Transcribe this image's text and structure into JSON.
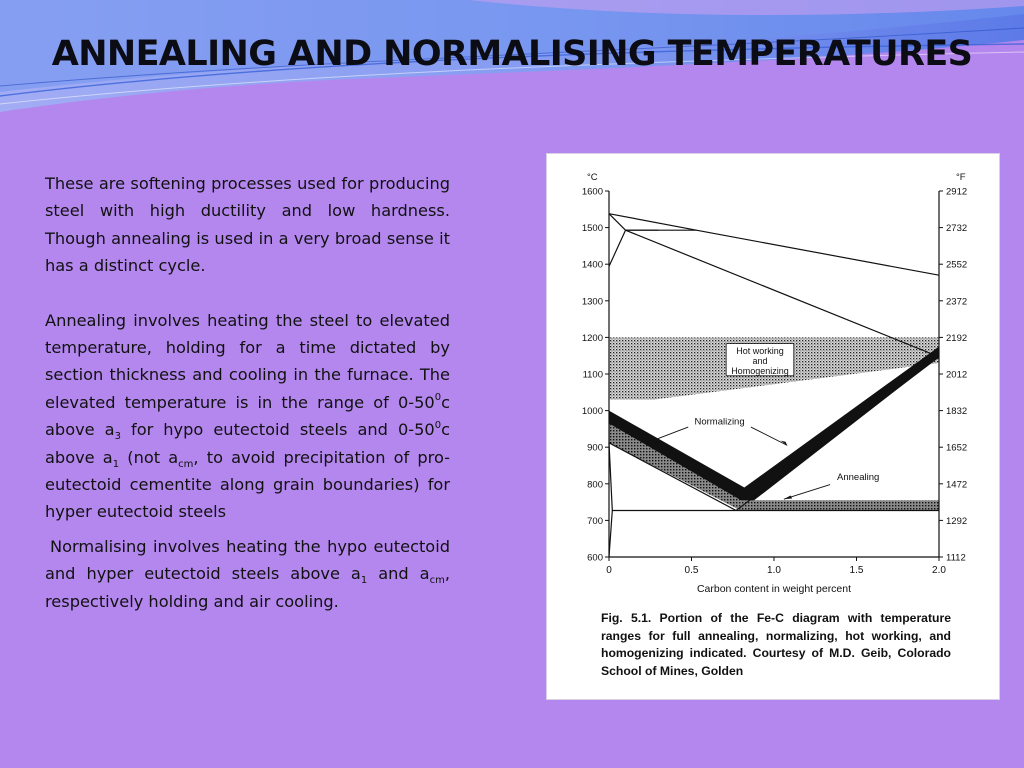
{
  "slide": {
    "title": "ANNEALING AND NORMALISING TEMPERATURES",
    "colors": {
      "background": "#b487ee",
      "wave_light": "#9fb3f5",
      "wave_mid": "#6f93ee",
      "wave_dark": "#3a62d8",
      "wave_pink": "#d0a0f0"
    }
  },
  "paragraphs": {
    "p1": "These are softening processes used for producing steel with high ductility and low hardness. Though annealing is used in a very broad sense it has a distinct cycle.",
    "p2": {
      "t1": "Annealing involves heating the steel to elevated temperature, holding for a time dictated by section thickness and cooling in the furnace. The elevated temperature is in the range of 0-50",
      "sup1": "0",
      "t2": "c above a",
      "sub1": "3",
      "t3": " for hypo eutectoid steels and 0-50",
      "sup2": "0",
      "t4": "c above a",
      "sub2": "1",
      "t5": " (not a",
      "sub3": "cm",
      "t6": ", to avoid precipitation of pro-eutectoid cementite along grain boundaries) for hyper eutectoid steels"
    },
    "p3": {
      "t1": "Normalising involves heating the hypo eutectoid and hyper eutectoid steels above a",
      "sub1": "1",
      "t2": " and a",
      "sub2": "cm",
      "t3": ", respectively holding and air cooling."
    }
  },
  "figure": {
    "caption": "Fig. 5.1. Portion of the Fe-C diagram with temperature ranges for full annealing, normalizing, hot working, and homogenizing indicated. Courtesy of M.D. Geib, Colorado School of Mines, Golden",
    "chart_data": {
      "type": "area",
      "xlabel": "Carbon content in weight percent",
      "y_left_unit": "°C",
      "y_right_unit": "°F",
      "x_ticks": [
        "0",
        "0.5",
        "1.0",
        "1.5",
        "2.0"
      ],
      "x_tick_values": [
        0,
        0.5,
        1.0,
        1.5,
        2.0
      ],
      "y_left_ticks": [
        "1600",
        "1500",
        "1400",
        "1300",
        "1200",
        "1100",
        "1000",
        "900",
        "800",
        "700",
        "600"
      ],
      "y_left_values": [
        1600,
        1500,
        1400,
        1300,
        1200,
        1100,
        1000,
        900,
        800,
        700,
        600
      ],
      "y_right_ticks": [
        "2912",
        "2732",
        "2552",
        "2372",
        "2192",
        "2012",
        "1832",
        "1652",
        "1472",
        "1292",
        "1112"
      ],
      "xlim": [
        0,
        2.0
      ],
      "ylim": [
        600,
        1600
      ],
      "grid": false,
      "labels": {
        "hot_working": [
          "Hot working",
          "and",
          "Homogenizing"
        ],
        "normalizing": "Normalizing",
        "annealing": "Annealing"
      },
      "phase_lines": [
        {
          "name": "liquidus",
          "points": [
            [
              0,
              1538
            ],
            [
              0.53,
              1493
            ],
            [
              2.0,
              1370
            ]
          ]
        },
        {
          "name": "delta-boundary-upper",
          "points": [
            [
              0,
              1538
            ],
            [
              0.1,
              1493
            ],
            [
              0.53,
              1493
            ]
          ]
        },
        {
          "name": "delta-boundary-lower",
          "points": [
            [
              0,
              1394
            ],
            [
              0.1,
              1493
            ]
          ]
        },
        {
          "name": "peritectic-solidus",
          "points": [
            [
              0.1,
              1493
            ],
            [
              0.3,
              1493
            ]
          ]
        },
        {
          "name": "solidus",
          "points": [
            [
              0.1,
              1493
            ],
            [
              2.0,
              1147
            ]
          ]
        },
        {
          "name": "acm",
          "points": [
            [
              0.77,
              727
            ],
            [
              2.0,
              1147
            ]
          ]
        },
        {
          "name": "a3",
          "points": [
            [
              0,
              912
            ],
            [
              0.77,
              727
            ]
          ]
        },
        {
          "name": "eutectoid",
          "points": [
            [
              0.02,
              727
            ],
            [
              2.0,
              727
            ]
          ]
        },
        {
          "name": "alpha-boundary",
          "points": [
            [
              0,
              912
            ],
            [
              0.02,
              727
            ],
            [
              0.0,
              600
            ]
          ]
        }
      ],
      "ranges": [
        {
          "name": "Hot working and Homogenizing",
          "points": [
            [
              0,
              1200
            ],
            [
              2.0,
              1200
            ],
            [
              2.0,
              1130
            ],
            [
              0.27,
              1030
            ],
            [
              0,
              1030
            ]
          ]
        },
        {
          "name": "Normalizing",
          "points": [
            [
              0,
              1000
            ],
            [
              0.82,
              790
            ],
            [
              2.0,
              1175
            ],
            [
              2.0,
              1147
            ],
            [
              0.8,
              727
            ],
            [
              0,
              912
            ]
          ]
        },
        {
          "name": "Annealing",
          "points": [
            [
              0,
              965
            ],
            [
              0.8,
              755
            ],
            [
              2.0,
              755
            ],
            [
              2.0,
              727
            ],
            [
              0.8,
              727
            ],
            [
              0,
              912
            ]
          ]
        }
      ]
    }
  }
}
